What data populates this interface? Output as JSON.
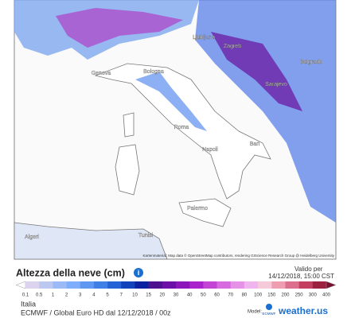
{
  "title": "Altezza della neve (cm)",
  "valid_label": "Valido per",
  "valid_date": "14/12/2018, 15:00 CST",
  "region": "Italia",
  "model_info": "ECMWF / Global Euro HD dal 12/12/2018 / 00z",
  "model_label": "Model:",
  "model_logo": "ECMWF",
  "brand": "weather.us",
  "attribution": "Kartenmaterial: Map data © OpenStreetMap contributors, rendering GIScience Research Group @ Heidelberg University",
  "cities": [
    "Ljubljana",
    "Zagreb",
    "Belgrado",
    "Sarajevo",
    "Genova",
    "Bologna",
    "Roma",
    "Napoli",
    "Bari",
    "Palermo",
    "Algeri",
    "Tunisi"
  ],
  "legend": {
    "labels": [
      "0.1",
      "0.5",
      "1",
      "2",
      "3",
      "4",
      "5",
      "7",
      "10",
      "15",
      "20",
      "30",
      "40",
      "50",
      "60",
      "70",
      "80",
      "100",
      "150",
      "200",
      "250",
      "300",
      "400"
    ],
    "colors": [
      "#ffffff",
      "#dcd4ee",
      "#bcc8f0",
      "#9cbaf6",
      "#7eaefc",
      "#5e98f0",
      "#4080e6",
      "#2462d6",
      "#1242bc",
      "#0a22a0",
      "#4c1290",
      "#6c10a8",
      "#8c18bc",
      "#aa22cc",
      "#c444d6",
      "#d66ade",
      "#e692e6",
      "#f0b4ee",
      "#f6cad8",
      "#ee9eb0",
      "#dc6e8e",
      "#c44060",
      "#9c2040",
      "#7a1030"
    ]
  }
}
